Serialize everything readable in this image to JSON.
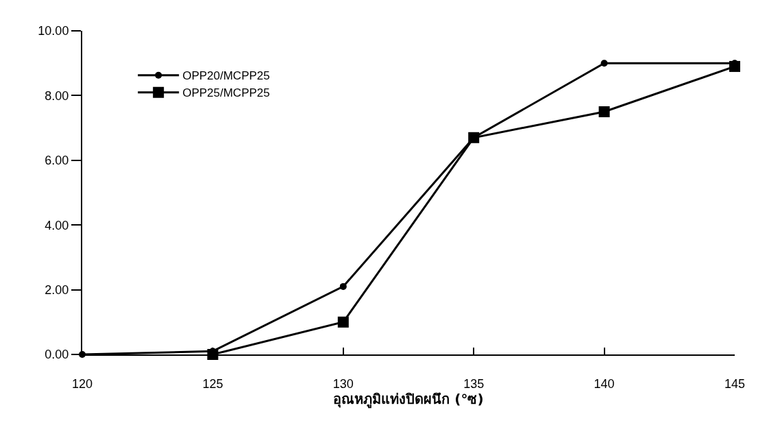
{
  "chart_data": {
    "type": "line",
    "xlabel": "อุณหภูมิแท่งปิดผนึก (°ซ)",
    "x": [
      120,
      125,
      130,
      135,
      140,
      145
    ],
    "series": [
      {
        "name": "OPP20/MCPP25",
        "color": "#000000",
        "marker": "circle",
        "values": [
          0.0,
          0.1,
          2.1,
          6.7,
          9.0,
          9.0
        ]
      },
      {
        "name": "OPP25/MCPP25",
        "color": "#000000",
        "marker": "square",
        "values": [
          null,
          0.0,
          1.0,
          6.7,
          7.5,
          8.9
        ]
      }
    ],
    "xlim": [
      120,
      145
    ],
    "xticks": [
      120,
      125,
      130,
      135,
      140,
      145
    ],
    "ylim": [
      0,
      10
    ],
    "yticks": [
      {
        "value": 0,
        "label": "0.00"
      },
      {
        "value": 2,
        "label": "2.00"
      },
      {
        "value": 4,
        "label": "4.00"
      },
      {
        "value": 6,
        "label": "6.00"
      },
      {
        "value": 8,
        "label": "8.00"
      },
      {
        "value": 10,
        "label": "10.00"
      }
    ],
    "legend": "top left",
    "line_style": "solid"
  }
}
